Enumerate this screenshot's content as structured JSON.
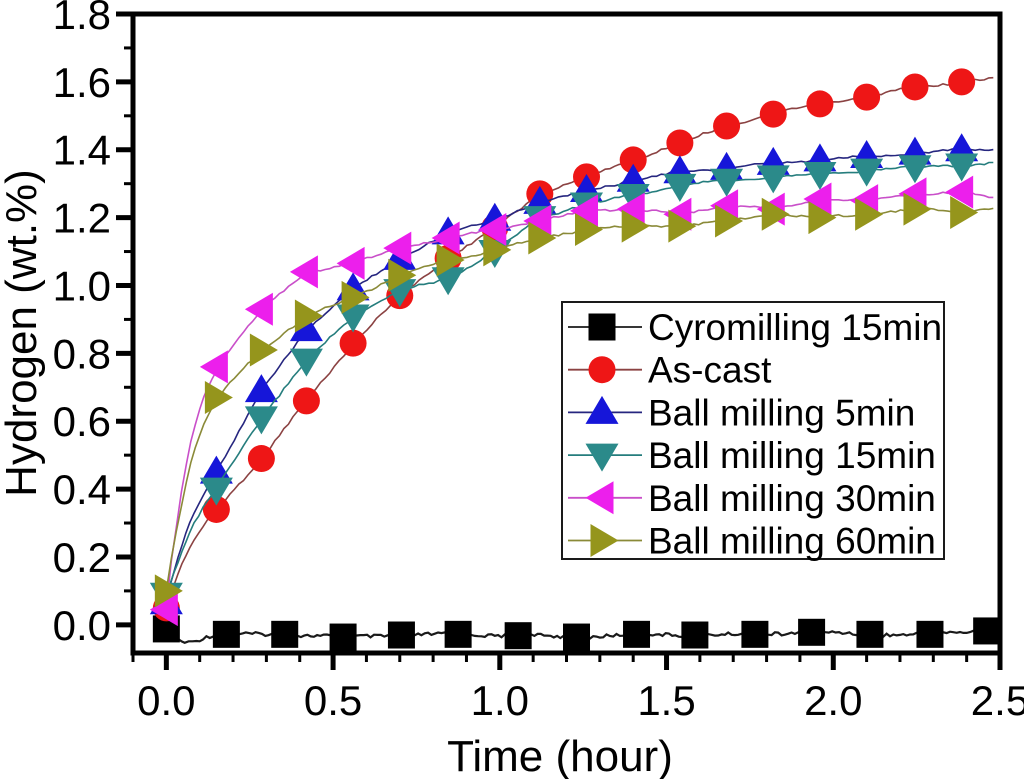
{
  "figure": {
    "background": "#ffffff"
  },
  "chart_data": {
    "type": "line",
    "title": "",
    "xlabel": "Time (hour)",
    "ylabel": "Hydrogen (wt.%)",
    "xlim": [
      -0.1,
      2.5
    ],
    "ylim": [
      -0.083,
      1.8
    ],
    "x_ticks": [
      0.0,
      0.5,
      1.0,
      1.5,
      2.0,
      2.5
    ],
    "x_tick_labels": [
      "0.0",
      "0.5",
      "1.0",
      "1.5",
      "2.0",
      "2.5"
    ],
    "y_ticks": [
      0.0,
      0.2,
      0.4,
      0.6,
      0.8,
      1.0,
      1.2,
      1.4,
      1.6,
      1.8
    ],
    "y_tick_labels": [
      "0.0",
      "0.2",
      "0.4",
      "0.6",
      "0.8",
      "1.0",
      "1.2",
      "1.4",
      "1.6",
      "1.8"
    ],
    "minor_tick_step": 0.1,
    "grid": false,
    "legend_position": "center-right",
    "series": [
      {
        "name": "Cyromilling 15min",
        "marker": "square",
        "marker_color": "#000000",
        "line_color": "#1a1a1a",
        "x": [
          0.0,
          0.18,
          0.355,
          0.53,
          0.705,
          0.875,
          1.055,
          1.23,
          1.41,
          1.585,
          1.765,
          1.935,
          2.11,
          2.29,
          2.46
        ],
        "y": [
          -0.012,
          -0.028,
          -0.028,
          -0.036,
          -0.03,
          -0.028,
          -0.032,
          -0.036,
          -0.028,
          -0.03,
          -0.028,
          -0.022,
          -0.028,
          -0.028,
          -0.018
        ],
        "lead_in": [
          [
            0.0,
            -0.012
          ],
          [
            0.03,
            -0.042
          ],
          [
            0.055,
            -0.057
          ],
          [
            0.09,
            -0.046
          ],
          [
            0.13,
            -0.03
          ]
        ],
        "tail": [
          [
            2.49,
            -0.018
          ]
        ]
      },
      {
        "name": "As-cast",
        "marker": "circle",
        "marker_color": "#ee1616",
        "line_color": "#8b4242",
        "x": [
          0.0,
          0.15,
          0.285,
          0.42,
          0.56,
          0.7,
          0.845,
          0.985,
          1.12,
          1.26,
          1.4,
          1.54,
          1.68,
          1.82,
          1.96,
          2.1,
          2.245,
          2.385
        ],
        "y": [
          0.05,
          0.34,
          0.49,
          0.66,
          0.83,
          0.97,
          1.08,
          1.17,
          1.27,
          1.32,
          1.37,
          1.42,
          1.47,
          1.505,
          1.535,
          1.555,
          1.585,
          1.6
        ],
        "lead_in": [
          [
            0.0,
            0.05
          ],
          [
            0.035,
            0.16
          ],
          [
            0.07,
            0.23
          ],
          [
            0.11,
            0.29
          ]
        ],
        "tail": [
          [
            2.48,
            1.61
          ]
        ]
      },
      {
        "name": "Ball milling 5min",
        "marker": "triangle-up",
        "marker_color": "#1616d9",
        "line_color": "#26267f",
        "x": [
          0.0,
          0.15,
          0.285,
          0.42,
          0.56,
          0.7,
          0.845,
          0.985,
          1.12,
          1.26,
          1.4,
          1.54,
          1.68,
          1.82,
          1.96,
          2.1,
          2.245,
          2.385
        ],
        "y": [
          0.065,
          0.45,
          0.69,
          0.87,
          0.99,
          1.08,
          1.155,
          1.195,
          1.245,
          1.28,
          1.31,
          1.335,
          1.345,
          1.36,
          1.37,
          1.38,
          1.39,
          1.4
        ],
        "lead_in": [
          [
            0.0,
            0.065
          ],
          [
            0.035,
            0.21
          ],
          [
            0.07,
            0.31
          ],
          [
            0.11,
            0.385
          ]
        ],
        "tail": [
          [
            2.48,
            1.4
          ]
        ]
      },
      {
        "name": "Ball milling 15min",
        "marker": "triangle-down",
        "marker_color": "#2b8a8a",
        "line_color": "#257d7d",
        "x": [
          0.0,
          0.15,
          0.285,
          0.42,
          0.56,
          0.7,
          0.845,
          0.985,
          1.12,
          1.26,
          1.4,
          1.54,
          1.68,
          1.82,
          1.96,
          2.1,
          2.245,
          2.385
        ],
        "y": [
          0.09,
          0.4,
          0.61,
          0.78,
          0.91,
          0.985,
          1.02,
          1.1,
          1.2,
          1.24,
          1.265,
          1.295,
          1.31,
          1.32,
          1.33,
          1.34,
          1.35,
          1.355
        ],
        "lead_in": [
          [
            0.0,
            0.09
          ],
          [
            0.035,
            0.19
          ],
          [
            0.07,
            0.28
          ],
          [
            0.11,
            0.345
          ]
        ],
        "tail": [
          [
            2.48,
            1.36
          ]
        ]
      },
      {
        "name": "Ball milling 30min",
        "marker": "triangle-left",
        "marker_color": "#ec1fec",
        "line_color": "#c94fc9",
        "x": [
          0.0,
          0.15,
          0.285,
          0.42,
          0.56,
          0.7,
          0.845,
          0.985,
          1.12,
          1.26,
          1.4,
          1.54,
          1.68,
          1.82,
          1.96,
          2.1,
          2.245,
          2.385
        ],
        "y": [
          0.045,
          0.76,
          0.93,
          1.04,
          1.065,
          1.11,
          1.14,
          1.165,
          1.19,
          1.22,
          1.225,
          1.21,
          1.235,
          1.225,
          1.255,
          1.25,
          1.27,
          1.275
        ],
        "lead_in": [
          [
            0.0,
            0.045
          ],
          [
            0.03,
            0.33
          ],
          [
            0.06,
            0.52
          ],
          [
            0.1,
            0.65
          ]
        ],
        "tail": [
          [
            2.48,
            1.26
          ]
        ]
      },
      {
        "name": "Ball milling 60min",
        "marker": "triangle-right",
        "marker_color": "#95951c",
        "line_color": "#8a8a38",
        "x": [
          0.0,
          0.15,
          0.285,
          0.42,
          0.56,
          0.7,
          0.845,
          0.985,
          1.12,
          1.26,
          1.4,
          1.54,
          1.68,
          1.82,
          1.96,
          2.1,
          2.245,
          2.385
        ],
        "y": [
          0.1,
          0.67,
          0.81,
          0.91,
          0.965,
          1.03,
          1.075,
          1.105,
          1.14,
          1.165,
          1.175,
          1.175,
          1.19,
          1.21,
          1.2,
          1.21,
          1.225,
          1.215
        ],
        "lead_in": [
          [
            0.0,
            0.1
          ],
          [
            0.03,
            0.29
          ],
          [
            0.06,
            0.46
          ],
          [
            0.1,
            0.575
          ]
        ],
        "tail": [
          [
            2.48,
            1.23
          ]
        ]
      }
    ]
  }
}
